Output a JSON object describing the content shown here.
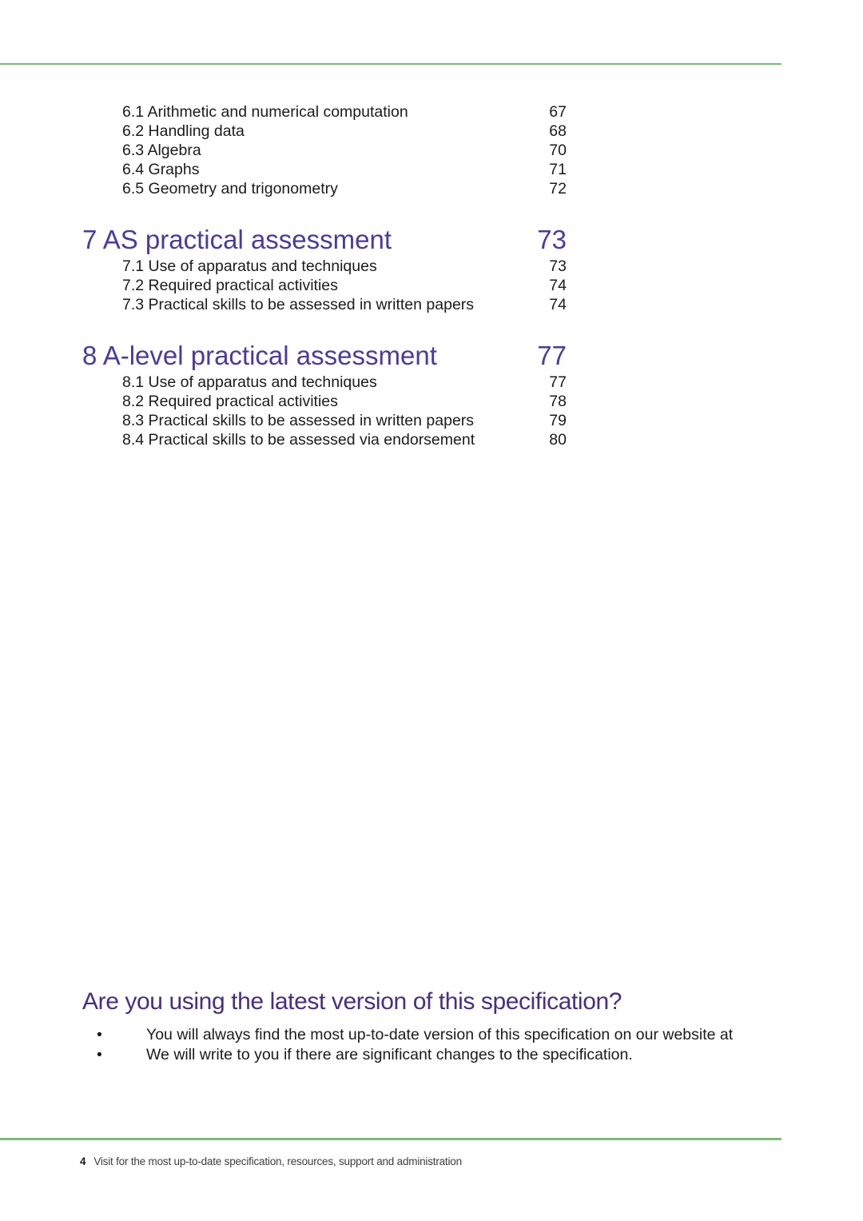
{
  "colors": {
    "green_rule": "#7cb97a",
    "section_heading": "#4c3a9c",
    "notice_heading": "#462f80",
    "body_text": "#1b1b1b",
    "footer_text": "#3d3d3d"
  },
  "toc": {
    "section6_items": [
      {
        "label": "6.1 Arithmetic and numerical computation",
        "page": "67"
      },
      {
        "label": "6.2 Handling data",
        "page": "68"
      },
      {
        "label": "6.3 Algebra",
        "page": "70"
      },
      {
        "label": "6.4 Graphs",
        "page": "71"
      },
      {
        "label": "6.5 Geometry and trigonometry",
        "page": "72"
      }
    ],
    "sections": [
      {
        "title": "7 AS practical assessment",
        "page": "73",
        "items": [
          {
            "label": "7.1 Use of apparatus and techniques",
            "page": "73"
          },
          {
            "label": "7.2 Required practical activities",
            "page": "74"
          },
          {
            "label": "7.3 Practical skills to be assessed in written papers",
            "page": "74"
          }
        ]
      },
      {
        "title": "8 A-level practical assessment",
        "page": "77",
        "items": [
          {
            "label": "8.1 Use of apparatus and techniques",
            "page": "77"
          },
          {
            "label": "8.2 Required practical activities",
            "page": "78"
          },
          {
            "label": "8.3 Practical skills to be assessed in written papers",
            "page": "79"
          },
          {
            "label": "8.4 Practical skills to be assessed via endorsement",
            "page": "80"
          }
        ]
      }
    ]
  },
  "notice": {
    "heading": "Are you using the latest version of this specification?",
    "bullets": [
      "You will always find the most up-to-date version of this specification on our website at",
      "We will write to you if there are significant changes to the specification."
    ]
  },
  "footer": {
    "page_number": "4",
    "text": "Visit for the most up-to-date specification, resources, support and administration"
  }
}
